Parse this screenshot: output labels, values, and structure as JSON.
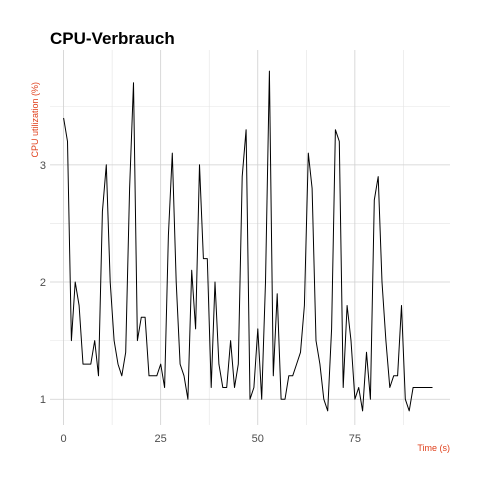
{
  "chart_data": {
    "type": "line",
    "title": "CPU-Verbrauch",
    "xlabel": "Time (s)",
    "ylabel": "CPU utilization (%)",
    "xlim": [
      -3.5,
      99.5
    ],
    "ylim": [
      0.78,
      3.98
    ],
    "xticks": [
      0,
      25,
      50,
      75
    ],
    "xtick_labels": [
      "0",
      "25",
      "50",
      "75"
    ],
    "yticks": [
      1,
      2,
      3
    ],
    "ytick_labels": [
      "1",
      "2",
      "3"
    ],
    "grid": true,
    "legend": "none",
    "line_color": "#000000",
    "axis_title_color": "#e0401c",
    "series": [
      {
        "x": [
          0,
          1,
          2,
          3,
          4,
          5,
          6,
          7,
          8,
          9,
          10,
          11,
          12,
          13,
          14,
          15,
          16,
          17,
          18,
          19,
          20,
          21,
          22,
          23,
          24,
          25,
          26,
          27,
          28,
          29,
          30,
          31,
          32,
          33,
          34,
          35,
          36,
          37,
          38,
          39,
          40,
          41,
          42,
          43,
          44,
          45,
          46,
          47,
          48,
          49,
          50,
          51,
          52,
          53,
          54,
          55,
          56,
          57,
          58,
          59,
          60,
          61,
          62,
          63,
          64,
          65,
          66,
          67,
          68,
          69,
          70,
          71,
          72,
          73,
          74,
          75,
          76,
          77,
          78,
          79,
          80,
          81,
          82,
          83,
          84,
          85,
          86,
          87,
          88,
          89,
          90,
          91,
          92,
          93,
          94,
          95
        ],
        "y": [
          3.4,
          3.2,
          1.5,
          2.0,
          1.8,
          1.3,
          1.3,
          1.3,
          1.5,
          1.2,
          2.6,
          3.0,
          2.0,
          1.5,
          1.3,
          1.2,
          1.4,
          2.8,
          3.7,
          1.5,
          1.7,
          1.7,
          1.2,
          1.2,
          1.2,
          1.3,
          1.1,
          2.4,
          3.1,
          2.0,
          1.3,
          1.2,
          1.0,
          2.1,
          1.6,
          3.0,
          2.2,
          2.2,
          1.1,
          2.0,
          1.3,
          1.1,
          1.1,
          1.5,
          1.1,
          1.3,
          2.9,
          3.3,
          1.0,
          1.1,
          1.6,
          1.0,
          2.0,
          3.8,
          1.2,
          1.9,
          1.0,
          1.0,
          1.2,
          1.2,
          1.3,
          1.4,
          1.8,
          3.1,
          2.8,
          1.5,
          1.3,
          1.0,
          0.9,
          1.6,
          3.3,
          3.2,
          1.1,
          1.8,
          1.5,
          1.0,
          1.1,
          0.9,
          1.4,
          1.0,
          2.7,
          2.9,
          2.0,
          1.5,
          1.1,
          1.2,
          1.2,
          1.8,
          1.0,
          0.9,
          1.1,
          1.1,
          1.1,
          1.1,
          1.1,
          1.1
        ]
      }
    ]
  }
}
